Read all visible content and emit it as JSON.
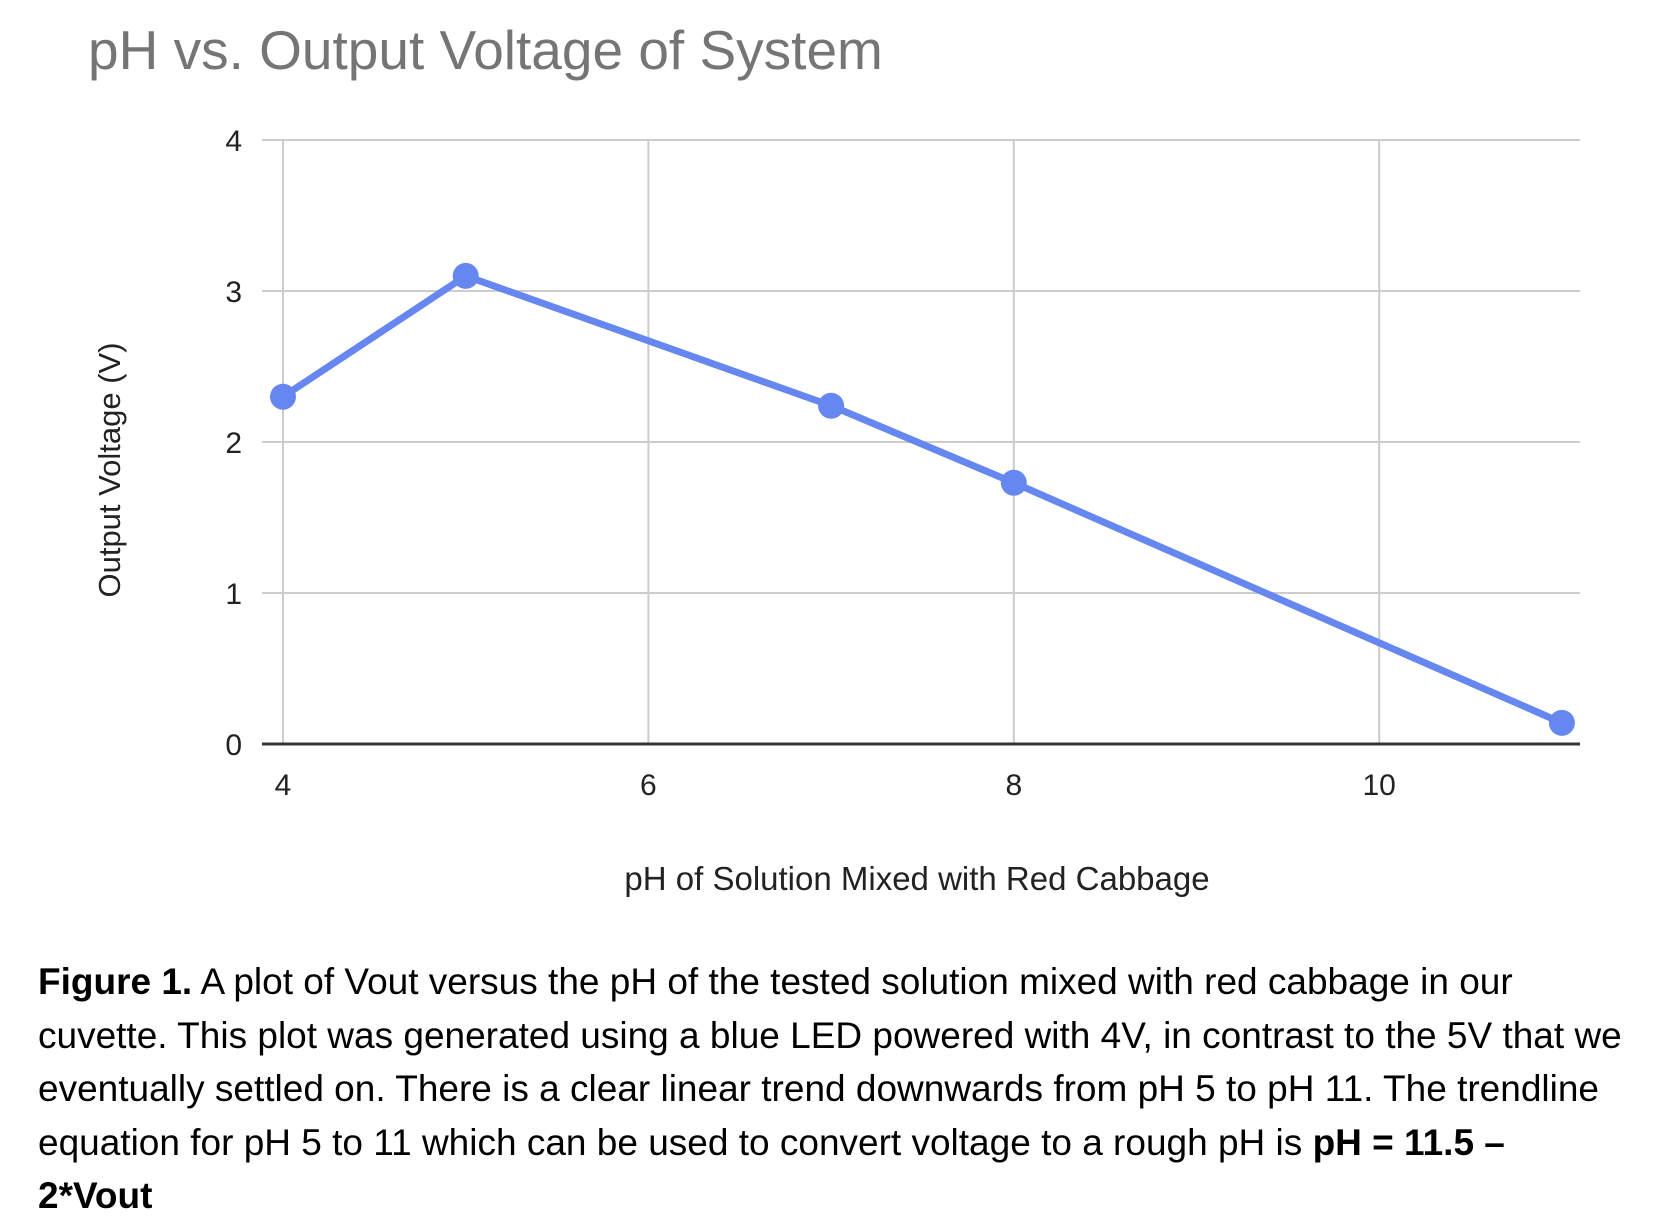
{
  "chart_data": {
    "type": "line",
    "title": "pH vs. Output Voltage of System",
    "xlabel": "pH of Solution Mixed with Red Cabbage",
    "ylabel": "Output Voltage (V)",
    "x": [
      4,
      5,
      7,
      8,
      11
    ],
    "series": [
      {
        "name": "Output Voltage (V)",
        "values": [
          2.3,
          3.1,
          2.24,
          1.73,
          0.14
        ],
        "color": "#6587ef"
      }
    ],
    "xlim": [
      4,
      11.1
    ],
    "ylim": [
      0,
      4
    ],
    "x_ticks": [
      "4",
      "6",
      "8",
      "10"
    ],
    "y_ticks": [
      "0",
      "1",
      "2",
      "3",
      "4"
    ],
    "grid": true,
    "legend": "none",
    "markers": "circle"
  },
  "caption": {
    "label": "Figure 1.",
    "text": " A plot of Vout versus the pH of the tested solution mixed with red cabbage in our cuvette. This plot was generated using a blue LED powered with 4V, in contrast to the 5V that we eventually settled on. There is a clear linear trend downwards from pH 5 to pH 11. The trendline equation for pH 5 to 11 which can be used to convert voltage to a rough pH is ",
    "equation": "pH = 11.5 – 2*Vout"
  }
}
